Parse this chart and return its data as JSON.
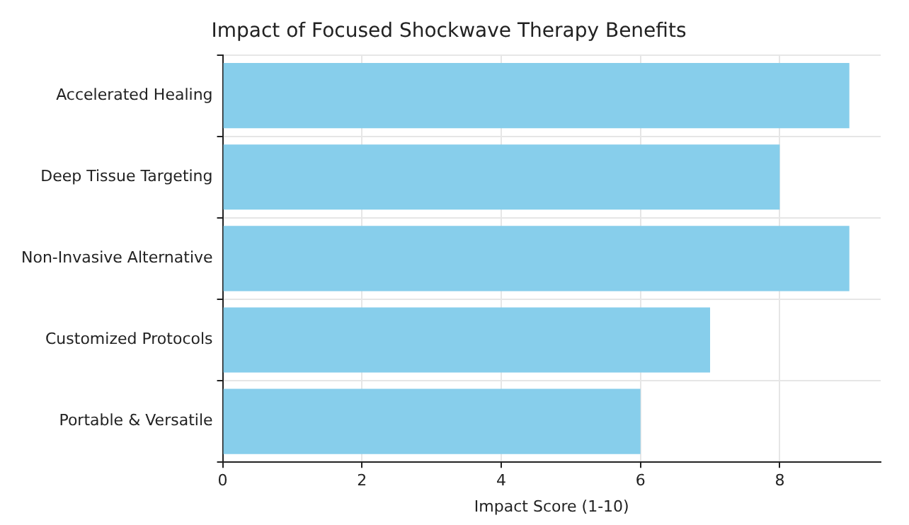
{
  "chart_data": {
    "type": "bar",
    "orientation": "horizontal",
    "title": "Impact of Focused Shockwave Therapy Benefits",
    "xlabel": "Impact Score (1-10)",
    "categories": [
      "Accelerated Healing",
      "Deep Tissue Targeting",
      "Non-Invasive Alternative",
      "Customized Protocols",
      "Portable & Versatile"
    ],
    "values": [
      9,
      8,
      9,
      7,
      6
    ],
    "color": "#87ceeb",
    "xlim": [
      0,
      9.45
    ],
    "xticks": [
      0,
      2,
      4,
      6,
      8
    ],
    "grid": true
  }
}
